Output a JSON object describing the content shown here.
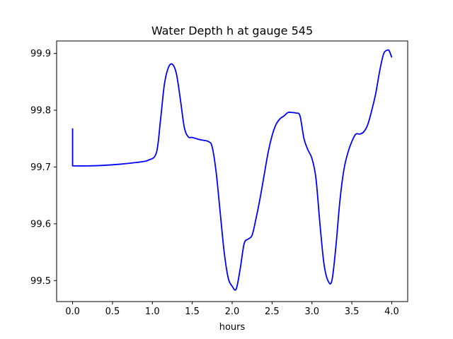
{
  "chart_data": {
    "type": "line",
    "title": "Water Depth h at gauge 545",
    "xlabel": "hours",
    "ylabel": "",
    "xlim": [
      -0.2,
      4.2
    ],
    "ylim": [
      99.463,
      99.922
    ],
    "xticks": [
      0.0,
      0.5,
      1.0,
      1.5,
      2.0,
      2.5,
      3.0,
      3.5,
      4.0
    ],
    "xtick_labels": [
      "0.0",
      "0.5",
      "1.0",
      "1.5",
      "2.0",
      "2.5",
      "3.0",
      "3.5",
      "4.0"
    ],
    "yticks": [
      99.5,
      99.6,
      99.7,
      99.8,
      99.9
    ],
    "ytick_labels": [
      "99.5",
      "99.6",
      "99.7",
      "99.8",
      "99.9"
    ],
    "grid": false,
    "series": [
      {
        "color": "#0000ff",
        "x": [
          0.0,
          0.0,
          0.0,
          0.2,
          0.4,
          0.6,
          0.8,
          0.95,
          1.05,
          1.1,
          1.15,
          1.2,
          1.25,
          1.3,
          1.35,
          1.4,
          1.45,
          1.5,
          1.6,
          1.7,
          1.75,
          1.8,
          1.85,
          1.9,
          1.95,
          2.0,
          2.05,
          2.1,
          2.15,
          2.2,
          2.25,
          2.3,
          2.35,
          2.4,
          2.45,
          2.5,
          2.55,
          2.6,
          2.65,
          2.7,
          2.75,
          2.8,
          2.85,
          2.9,
          2.95,
          3.0,
          3.05,
          3.1,
          3.15,
          3.2,
          3.25,
          3.3,
          3.35,
          3.4,
          3.45,
          3.5,
          3.55,
          3.6,
          3.65,
          3.7,
          3.75,
          3.8,
          3.85,
          3.9,
          3.95,
          3.97,
          4.0
        ],
        "y": [
          99.768,
          99.702,
          99.702,
          99.702,
          99.703,
          99.705,
          99.708,
          99.712,
          99.725,
          99.78,
          99.845,
          99.875,
          99.881,
          99.865,
          99.82,
          99.77,
          99.753,
          99.752,
          99.748,
          99.745,
          99.735,
          99.69,
          99.62,
          99.55,
          99.505,
          99.49,
          99.485,
          99.52,
          99.565,
          99.573,
          99.58,
          99.61,
          99.645,
          99.685,
          99.725,
          99.755,
          99.775,
          99.785,
          99.79,
          99.796,
          99.796,
          99.795,
          99.79,
          99.75,
          99.73,
          99.715,
          99.68,
          99.6,
          99.53,
          99.5,
          99.5,
          99.56,
          99.64,
          99.695,
          99.725,
          99.745,
          99.758,
          99.758,
          99.762,
          99.775,
          99.8,
          99.83,
          99.87,
          99.9,
          99.906,
          99.904,
          99.893
        ]
      }
    ]
  }
}
